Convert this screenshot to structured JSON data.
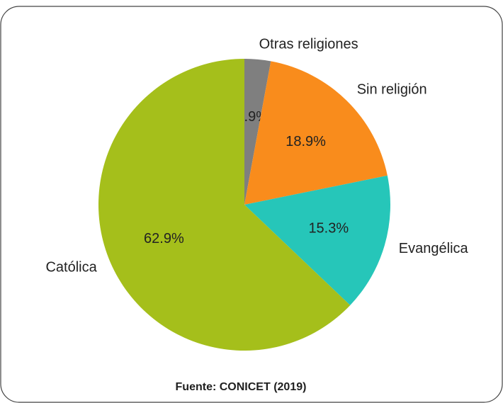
{
  "chart_data": {
    "type": "pie",
    "categories": [
      "Otras religiones",
      "Sin religión",
      "Evangélica",
      "Católica"
    ],
    "values": [
      2.9,
      18.9,
      15.3,
      62.9
    ],
    "value_labels": [
      "2.9%",
      "18.9%",
      "15.3%",
      "62.9%"
    ],
    "colors": [
      "#7f7f7f",
      "#f98c1c",
      "#26c6b9",
      "#a5bf1b"
    ],
    "source": "Fuente: CONICET (2019)"
  }
}
